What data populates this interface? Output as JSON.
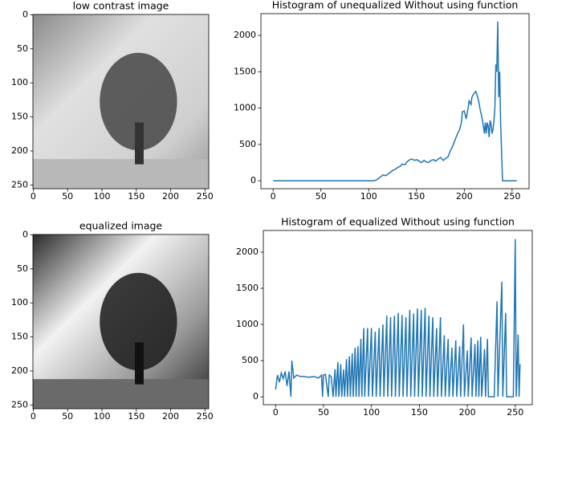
{
  "chart_data": [
    {
      "type": "image",
      "title": "low contrast image",
      "xlim": [
        -0.5,
        255.5
      ],
      "ylim": [
        255.5,
        -0.5
      ],
      "xticks": [
        0,
        50,
        100,
        150,
        200,
        250
      ],
      "yticks": [
        0,
        50,
        100,
        150,
        200,
        250
      ],
      "tone": "light"
    },
    {
      "type": "line",
      "title": "Histogram of unequalized Without using function",
      "color": "#1f77b4",
      "x": [
        0,
        20,
        40,
        60,
        80,
        100,
        105,
        108,
        110,
        113,
        115,
        118,
        120,
        123,
        125,
        128,
        130,
        133,
        135,
        138,
        140,
        143,
        145,
        148,
        150,
        153,
        155,
        158,
        160,
        163,
        165,
        168,
        170,
        173,
        175,
        178,
        180,
        183,
        185,
        188,
        190,
        193,
        195,
        197,
        198,
        200,
        202,
        204,
        205,
        207,
        208,
        210,
        212,
        214,
        215,
        217,
        218,
        220,
        221,
        222,
        223,
        224,
        225,
        226,
        227,
        228,
        229,
        230,
        231,
        232,
        233,
        234,
        235,
        236,
        237,
        238,
        240,
        245,
        250,
        255
      ],
      "values": [
        0,
        0,
        0,
        0,
        0,
        0,
        0,
        10,
        30,
        60,
        80,
        70,
        90,
        120,
        140,
        160,
        180,
        200,
        230,
        220,
        260,
        290,
        300,
        280,
        290,
        270,
        250,
        280,
        260,
        250,
        280,
        290,
        270,
        300,
        320,
        280,
        300,
        330,
        400,
        480,
        550,
        650,
        700,
        800,
        950,
        960,
        850,
        1000,
        1100,
        1050,
        1150,
        1200,
        1230,
        1150,
        1100,
        950,
        900,
        750,
        650,
        800,
        650,
        800,
        750,
        600,
        830,
        780,
        650,
        700,
        820,
        1000,
        1600,
        1500,
        2190,
        1150,
        1500,
        800,
        0,
        0,
        0,
        0
      ],
      "xlim": [
        -12.75,
        267.75
      ],
      "ylim": [
        -109.5,
        2299.5
      ],
      "xticks": [
        0,
        50,
        100,
        150,
        200,
        250
      ],
      "yticks": [
        0,
        500,
        1000,
        1500,
        2000
      ]
    },
    {
      "type": "image",
      "title": "equalized image",
      "xlim": [
        -0.5,
        255.5
      ],
      "ylim": [
        255.5,
        -0.5
      ],
      "xticks": [
        0,
        50,
        100,
        150,
        200,
        250
      ],
      "yticks": [
        0,
        50,
        100,
        150,
        200,
        250
      ],
      "tone": "dark"
    },
    {
      "type": "line",
      "title": "Histogram of equalized Without using function",
      "color": "#1f77b4",
      "x": [
        0,
        2,
        4,
        6,
        8,
        10,
        12,
        14,
        16,
        17,
        19,
        22,
        26,
        30,
        35,
        40,
        45,
        48,
        49,
        50,
        52,
        55,
        56,
        58,
        60,
        62,
        63,
        65,
        66,
        68,
        69,
        71,
        72,
        74,
        75,
        77,
        78,
        80,
        81,
        83,
        84,
        86,
        87,
        89,
        90,
        92,
        93,
        96,
        97,
        100,
        101,
        104,
        105,
        108,
        109,
        112,
        113,
        116,
        117,
        120,
        121,
        124,
        125,
        128,
        129,
        132,
        133,
        136,
        137,
        140,
        141,
        144,
        145,
        148,
        149,
        152,
        153,
        156,
        157,
        160,
        161,
        164,
        165,
        168,
        169,
        172,
        173,
        176,
        177,
        180,
        181,
        184,
        185,
        188,
        189,
        192,
        193,
        196,
        197,
        200,
        201,
        204,
        205,
        208,
        209,
        211,
        212,
        214,
        215,
        218,
        219,
        221,
        222,
        225,
        228,
        231,
        232,
        236,
        237,
        240,
        241,
        248,
        250,
        251,
        253,
        254,
        255
      ],
      "values": [
        100,
        300,
        200,
        330,
        250,
        350,
        150,
        350,
        0,
        500,
        260,
        300,
        280,
        280,
        270,
        280,
        260,
        300,
        0,
        300,
        310,
        0,
        300,
        280,
        0,
        380,
        0,
        480,
        0,
        450,
        0,
        380,
        0,
        520,
        0,
        560,
        0,
        600,
        0,
        680,
        0,
        700,
        0,
        800,
        0,
        950,
        0,
        950,
        0,
        950,
        0,
        900,
        0,
        950,
        0,
        1000,
        0,
        1120,
        0,
        1100,
        0,
        1120,
        0,
        1160,
        0,
        1130,
        0,
        1100,
        0,
        1200,
        0,
        1150,
        0,
        1220,
        0,
        1200,
        0,
        1230,
        0,
        1120,
        0,
        1100,
        0,
        950,
        0,
        1100,
        0,
        850,
        0,
        800,
        0,
        680,
        0,
        780,
        0,
        700,
        0,
        1000,
        0,
        640,
        0,
        820,
        0,
        730,
        0,
        780,
        0,
        830,
        0,
        660,
        0,
        800,
        0,
        0,
        0,
        1320,
        0,
        1590,
        0,
        1160,
        0,
        0,
        2180,
        0,
        860,
        0,
        450
      ],
      "xlim": [
        -12.75,
        267.75
      ],
      "ylim": [
        -109.5,
        2299.5
      ],
      "xticks": [
        0,
        50,
        100,
        150,
        200,
        250
      ],
      "yticks": [
        0,
        500,
        1000,
        1500,
        2000
      ]
    }
  ]
}
